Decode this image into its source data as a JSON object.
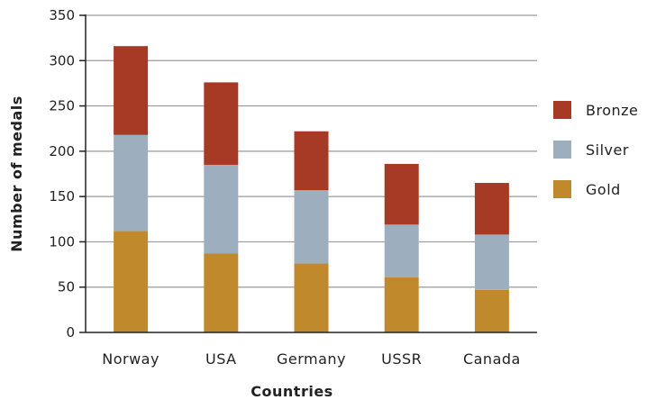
{
  "chart_data": {
    "type": "bar",
    "stacked": true,
    "title": "",
    "xlabel": "Countries",
    "ylabel": "Number of medals",
    "ylim": [
      0,
      350
    ],
    "yticks": [
      0,
      50,
      100,
      150,
      200,
      250,
      300,
      350
    ],
    "grid": "horizontal",
    "legend_position": "right",
    "categories": [
      "Norway",
      "USA",
      "Germany",
      "USSR",
      "Canada"
    ],
    "series": [
      {
        "name": "Gold",
        "color": "#c08a2c",
        "values": [
          112,
          87,
          76,
          61,
          47
        ]
      },
      {
        "name": "Silver",
        "color": "#9dafbe",
        "values": [
          106,
          98,
          81,
          58,
          61
        ]
      },
      {
        "name": "Bronze",
        "color": "#a63a24",
        "values": [
          98,
          91,
          65,
          67,
          57
        ]
      }
    ],
    "legend_order": [
      "Bronze",
      "Silver",
      "Gold"
    ]
  }
}
